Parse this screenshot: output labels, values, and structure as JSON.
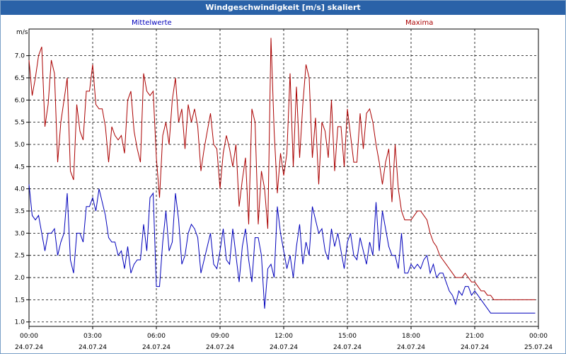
{
  "window": {
    "title": "Windgeschwindigkeit [m/s] skaliert"
  },
  "colors": {
    "mean": "#0000bb",
    "max": "#aa0000",
    "frame": "#000000",
    "title_bg": "#2a62a8"
  },
  "chart_data": {
    "type": "line",
    "ylabel": "m/s",
    "ylim": [
      0.9,
      7.6
    ],
    "y_ticks": [
      "1.0",
      "1.5",
      "2.0",
      "2.5",
      "3.0",
      "3.5",
      "4.0",
      "4.5",
      "5.0",
      "5.5",
      "6.0",
      "6.5",
      "7.0"
    ],
    "x_ticks": [
      {
        "time": "00:00",
        "date": "24.07.24"
      },
      {
        "time": "03:00",
        "date": "24.07.24"
      },
      {
        "time": "06:00",
        "date": "24.07.24"
      },
      {
        "time": "09:00",
        "date": "24.07.24"
      },
      {
        "time": "12:00",
        "date": "24.07.24"
      },
      {
        "time": "15:00",
        "date": "24.07.24"
      },
      {
        "time": "18:00",
        "date": "24.07.24"
      },
      {
        "time": "21:00",
        "date": "24.07.24"
      },
      {
        "time": "00:00",
        "date": "25.07.24"
      }
    ],
    "x_hours": [
      0,
      24
    ],
    "series": [
      {
        "name": "Mittelwerte",
        "color": "#0000bb",
        "x": [
          0,
          0.15,
          0.3,
          0.45,
          0.6,
          0.75,
          0.9,
          1.05,
          1.2,
          1.35,
          1.5,
          1.65,
          1.8,
          1.95,
          2.1,
          2.25,
          2.4,
          2.55,
          2.7,
          2.85,
          3.0,
          3.15,
          3.3,
          3.45,
          3.6,
          3.75,
          3.9,
          4.05,
          4.2,
          4.35,
          4.5,
          4.65,
          4.8,
          4.95,
          5.1,
          5.25,
          5.4,
          5.55,
          5.7,
          5.85,
          6.0,
          6.15,
          6.3,
          6.45,
          6.6,
          6.75,
          6.9,
          7.05,
          7.2,
          7.35,
          7.5,
          7.65,
          7.8,
          7.95,
          8.1,
          8.25,
          8.4,
          8.55,
          8.7,
          8.85,
          9.0,
          9.15,
          9.3,
          9.45,
          9.6,
          9.75,
          9.9,
          10.05,
          10.2,
          10.35,
          10.5,
          10.65,
          10.8,
          10.95,
          11.1,
          11.25,
          11.4,
          11.55,
          11.7,
          11.85,
          12.0,
          12.15,
          12.3,
          12.45,
          12.6,
          12.75,
          12.9,
          13.05,
          13.2,
          13.35,
          13.5,
          13.65,
          13.8,
          13.95,
          14.1,
          14.25,
          14.4,
          14.55,
          14.7,
          14.85,
          15.0,
          15.15,
          15.3,
          15.45,
          15.6,
          15.75,
          15.9,
          16.05,
          16.2,
          16.35,
          16.5,
          16.65,
          16.8,
          16.95,
          17.1,
          17.25,
          17.4,
          17.55,
          17.7,
          17.85,
          18.0,
          18.15,
          18.3,
          18.45,
          18.6,
          18.75,
          18.9,
          19.05,
          19.2,
          19.35,
          19.5,
          19.65,
          19.8,
          19.95,
          20.1,
          20.25,
          20.4,
          20.55,
          20.7,
          20.85,
          21.0,
          21.15,
          21.3,
          21.45,
          21.6,
          21.75,
          21.9,
          22.05,
          22.2,
          22.35,
          22.5,
          22.65,
          22.8,
          22.95,
          23.1,
          23.25,
          23.4,
          23.55,
          23.7,
          23.85
        ],
        "values": [
          4.1,
          3.4,
          3.3,
          3.4,
          3.0,
          2.6,
          3.0,
          3.0,
          3.1,
          2.5,
          2.8,
          3.0,
          3.9,
          2.4,
          2.1,
          3.0,
          3.0,
          2.8,
          3.6,
          3.6,
          3.8,
          3.5,
          4.0,
          3.7,
          3.4,
          2.9,
          2.8,
          2.8,
          2.5,
          2.6,
          2.2,
          2.7,
          2.1,
          2.3,
          2.4,
          2.4,
          3.2,
          2.6,
          3.8,
          3.9,
          1.8,
          1.8,
          2.8,
          3.5,
          2.6,
          2.8,
          3.9,
          3.3,
          2.3,
          2.5,
          3.0,
          3.2,
          3.1,
          2.9,
          2.1,
          2.4,
          2.7,
          3.0,
          2.3,
          2.2,
          2.6,
          3.1,
          2.4,
          2.3,
          3.1,
          2.5,
          1.9,
          2.7,
          3.1,
          2.4,
          1.9,
          2.9,
          2.9,
          2.5,
          1.3,
          2.2,
          2.3,
          2.0,
          3.6,
          3.0,
          2.6,
          2.2,
          2.5,
          2.0,
          2.7,
          3.2,
          2.3,
          2.8,
          2.5,
          3.6,
          3.3,
          3.0,
          3.1,
          2.6,
          2.4,
          3.1,
          2.7,
          3.0,
          2.6,
          2.2,
          2.8,
          3.0,
          2.5,
          2.4,
          2.9,
          2.6,
          2.3,
          2.8,
          2.5,
          3.7,
          2.6,
          3.5,
          3.1,
          2.7,
          2.5,
          2.5,
          2.2,
          3.0,
          2.1,
          2.1,
          2.3,
          2.2,
          2.3,
          2.2,
          2.4,
          2.5,
          2.1,
          2.3,
          2.0,
          2.1,
          2.1,
          1.9,
          1.7,
          1.6,
          1.4,
          1.7,
          1.6,
          1.8,
          1.8,
          1.6,
          1.7,
          1.6,
          1.5,
          1.4,
          1.3,
          1.2,
          1.2,
          1.2,
          1.2,
          1.2,
          1.2,
          1.2,
          1.2,
          1.2,
          1.2,
          1.2,
          1.2,
          1.2,
          1.2,
          1.2
        ]
      },
      {
        "name": "Maxima",
        "color": "#aa0000",
        "x": [
          0,
          0.15,
          0.3,
          0.45,
          0.6,
          0.75,
          0.9,
          1.05,
          1.2,
          1.35,
          1.5,
          1.65,
          1.8,
          1.95,
          2.1,
          2.25,
          2.4,
          2.55,
          2.7,
          2.85,
          3.0,
          3.15,
          3.3,
          3.45,
          3.6,
          3.75,
          3.9,
          4.05,
          4.2,
          4.35,
          4.5,
          4.65,
          4.8,
          4.95,
          5.1,
          5.25,
          5.4,
          5.55,
          5.7,
          5.85,
          6.0,
          6.15,
          6.3,
          6.45,
          6.6,
          6.75,
          6.9,
          7.05,
          7.2,
          7.35,
          7.5,
          7.65,
          7.8,
          7.95,
          8.1,
          8.25,
          8.4,
          8.55,
          8.7,
          8.85,
          9.0,
          9.15,
          9.3,
          9.45,
          9.6,
          9.75,
          9.9,
          10.05,
          10.2,
          10.35,
          10.5,
          10.65,
          10.8,
          10.95,
          11.1,
          11.25,
          11.4,
          11.55,
          11.7,
          11.85,
          12.0,
          12.15,
          12.3,
          12.45,
          12.6,
          12.75,
          12.9,
          13.05,
          13.2,
          13.35,
          13.5,
          13.65,
          13.8,
          13.95,
          14.1,
          14.25,
          14.4,
          14.55,
          14.7,
          14.85,
          15.0,
          15.15,
          15.3,
          15.45,
          15.6,
          15.75,
          15.9,
          16.05,
          16.2,
          16.35,
          16.5,
          16.65,
          16.8,
          16.95,
          17.1,
          17.25,
          17.4,
          17.55,
          17.7,
          17.85,
          18.0,
          18.15,
          18.3,
          18.45,
          18.6,
          18.75,
          18.9,
          19.05,
          19.2,
          19.35,
          19.5,
          19.65,
          19.8,
          19.95,
          20.1,
          20.25,
          20.4,
          20.55,
          20.7,
          20.85,
          21.0,
          21.15,
          21.3,
          21.45,
          21.6,
          21.75,
          21.9,
          22.05,
          22.2,
          22.35,
          22.5,
          22.65,
          22.8,
          22.95,
          23.1,
          23.25,
          23.4,
          23.55,
          23.7,
          23.85
        ],
        "values": [
          6.9,
          6.1,
          6.5,
          7.0,
          7.2,
          5.4,
          5.9,
          6.9,
          6.6,
          4.6,
          5.5,
          6.0,
          6.5,
          4.4,
          4.2,
          5.9,
          5.3,
          5.1,
          6.2,
          6.2,
          6.8,
          5.9,
          5.8,
          5.8,
          5.4,
          4.6,
          5.4,
          5.2,
          5.1,
          5.2,
          4.8,
          6.0,
          6.2,
          5.3,
          4.9,
          4.6,
          6.6,
          6.2,
          6.1,
          6.2,
          4.7,
          3.8,
          5.2,
          5.5,
          5.0,
          6.0,
          6.5,
          5.5,
          5.8,
          4.9,
          5.9,
          5.5,
          5.8,
          5.4,
          4.4,
          4.9,
          5.3,
          5.7,
          5.0,
          4.9,
          4.0,
          4.8,
          5.2,
          4.9,
          4.5,
          5.0,
          3.6,
          4.2,
          4.7,
          3.2,
          5.8,
          5.5,
          3.2,
          4.4,
          4.0,
          3.1,
          7.4,
          5.3,
          3.9,
          4.8,
          4.3,
          4.8,
          6.6,
          4.5,
          6.3,
          4.7,
          5.9,
          6.8,
          6.5,
          4.7,
          5.6,
          4.1,
          5.5,
          5.3,
          4.7,
          6.0,
          4.4,
          5.4,
          5.4,
          4.5,
          5.8,
          5.2,
          4.6,
          4.6,
          5.7,
          4.9,
          5.7,
          5.8,
          5.5,
          5.0,
          4.6,
          4.1,
          4.6,
          4.9,
          3.7,
          5.0,
          4.0,
          3.5,
          3.3,
          3.3,
          3.3,
          3.4,
          3.5,
          3.5,
          3.4,
          3.3,
          3.0,
          2.8,
          2.7,
          2.5,
          2.4,
          2.3,
          2.2,
          2.1,
          2.0,
          2.0,
          2.0,
          2.1,
          2.0,
          1.9,
          1.9,
          1.8,
          1.7,
          1.7,
          1.6,
          1.6,
          1.5,
          1.5,
          1.5,
          1.5,
          1.5,
          1.5,
          1.5,
          1.5,
          1.5,
          1.5,
          1.5,
          1.5,
          1.5,
          1.5
        ]
      }
    ]
  }
}
